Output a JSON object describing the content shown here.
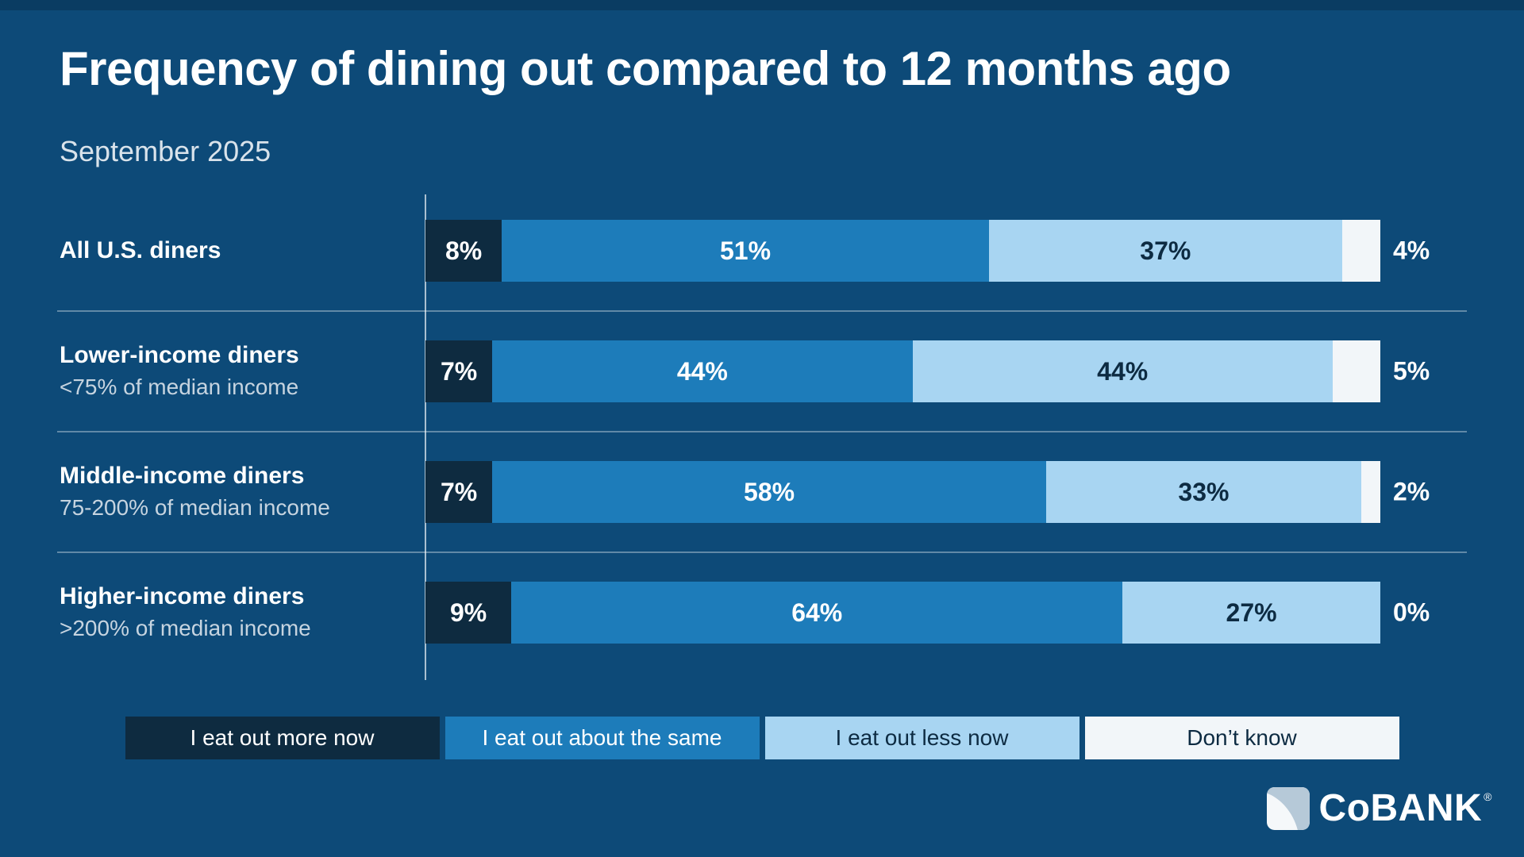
{
  "colors": {
    "background": "#0d4a78",
    "top_strip": "#0a3c62",
    "dark_navy": "#0e2b40",
    "medium_blue": "#1d7cba",
    "light_blue": "#a8d5f2",
    "off_white": "#f2f6f9",
    "text_white": "#ffffff",
    "text_dark": "#0d2b42"
  },
  "chart_data": {
    "type": "bar",
    "stacked": true,
    "orientation": "horizontal",
    "title": "Frequency of dining out compared to 12 months ago",
    "subtitle": "September 2025",
    "xlim": [
      0,
      100
    ],
    "value_suffix": "%",
    "grid": false,
    "legend_position": "bottom",
    "categories": [
      {
        "label": "All U.S. diners",
        "sublabel": ""
      },
      {
        "label": "Lower-income diners",
        "sublabel": "<75% of median income"
      },
      {
        "label": "Middle-income diners",
        "sublabel": "75-200% of median income"
      },
      {
        "label": "Higher-income diners",
        "sublabel": ">200% of median income"
      }
    ],
    "series": [
      {
        "name": "I eat out more now",
        "color": "#0e2b40",
        "text_color": "#ffffff",
        "values": [
          8,
          7,
          7,
          9
        ]
      },
      {
        "name": "I eat out about the same",
        "color": "#1d7cba",
        "text_color": "#ffffff",
        "values": [
          51,
          44,
          58,
          64
        ]
      },
      {
        "name": "I eat out less now",
        "color": "#a8d5f2",
        "text_color": "#0d2b42",
        "values": [
          37,
          44,
          33,
          27
        ]
      },
      {
        "name": "Don’t know",
        "color": "#f2f6f9",
        "text_color": "#0d2b42",
        "values": [
          4,
          5,
          2,
          0
        ],
        "label_outside": true
      }
    ]
  },
  "branding": {
    "logo_text": "CoBANK",
    "registered": "®"
  }
}
